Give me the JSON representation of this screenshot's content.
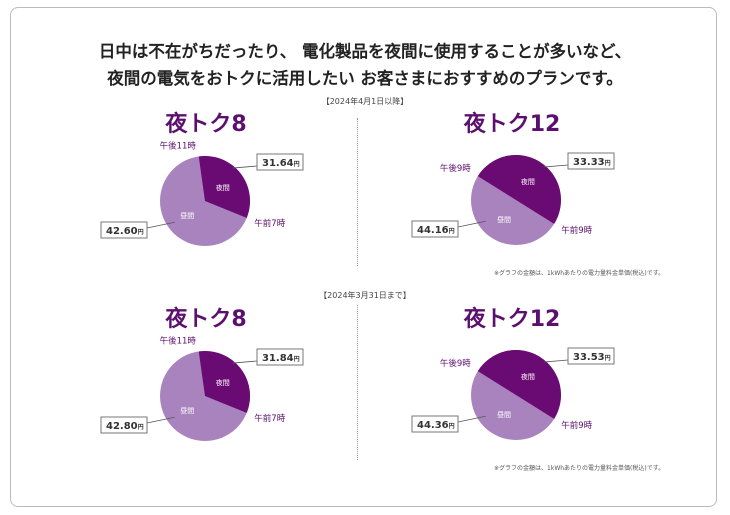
{
  "heading": {
    "line1": "日中は不在がちだったり、 電化製品を夜間に使用することが多いなど、",
    "line2": "夜間の電気をおトクに活用したい お客さまにおすすめのプランです。"
  },
  "sections": [
    {
      "period": "【2024年4月1日以降】",
      "note": "※グラフの金額は、1kWhあたりの電力量料金単価(税込)です。"
    },
    {
      "period": "【2024年3月31日まで】",
      "note": "※グラフの金額は、1kWhあたりの電力量料金単価(税込)です。"
    }
  ],
  "colors": {
    "night": "#6a0a73",
    "day": "#a983bd",
    "title": "#5c0f6e"
  },
  "chart_data": [
    {
      "type": "pie",
      "title": "夜トク8",
      "labels": [
        "夜間",
        "昼間"
      ],
      "values": [
        8,
        16
      ],
      "night_start": "午後11時",
      "night_end": "午前7時",
      "prices": {
        "夜間": "31.64",
        "昼間": "42.60"
      },
      "unit": "円"
    },
    {
      "type": "pie",
      "title": "夜トク12",
      "labels": [
        "夜間",
        "昼間"
      ],
      "values": [
        12,
        12
      ],
      "night_start": "午後9時",
      "night_end": "午前9時",
      "prices": {
        "夜間": "33.33",
        "昼間": "44.16"
      },
      "unit": "円"
    },
    {
      "type": "pie",
      "title": "夜トク8",
      "labels": [
        "夜間",
        "昼間"
      ],
      "values": [
        8,
        16
      ],
      "night_start": "午後11時",
      "night_end": "午前7時",
      "prices": {
        "夜間": "31.84",
        "昼間": "42.80"
      },
      "unit": "円"
    },
    {
      "type": "pie",
      "title": "夜トク12",
      "labels": [
        "夜間",
        "昼間"
      ],
      "values": [
        12,
        12
      ],
      "night_start": "午後9時",
      "night_end": "午前9時",
      "prices": {
        "夜間": "33.53",
        "昼間": "44.36"
      },
      "unit": "円"
    }
  ]
}
